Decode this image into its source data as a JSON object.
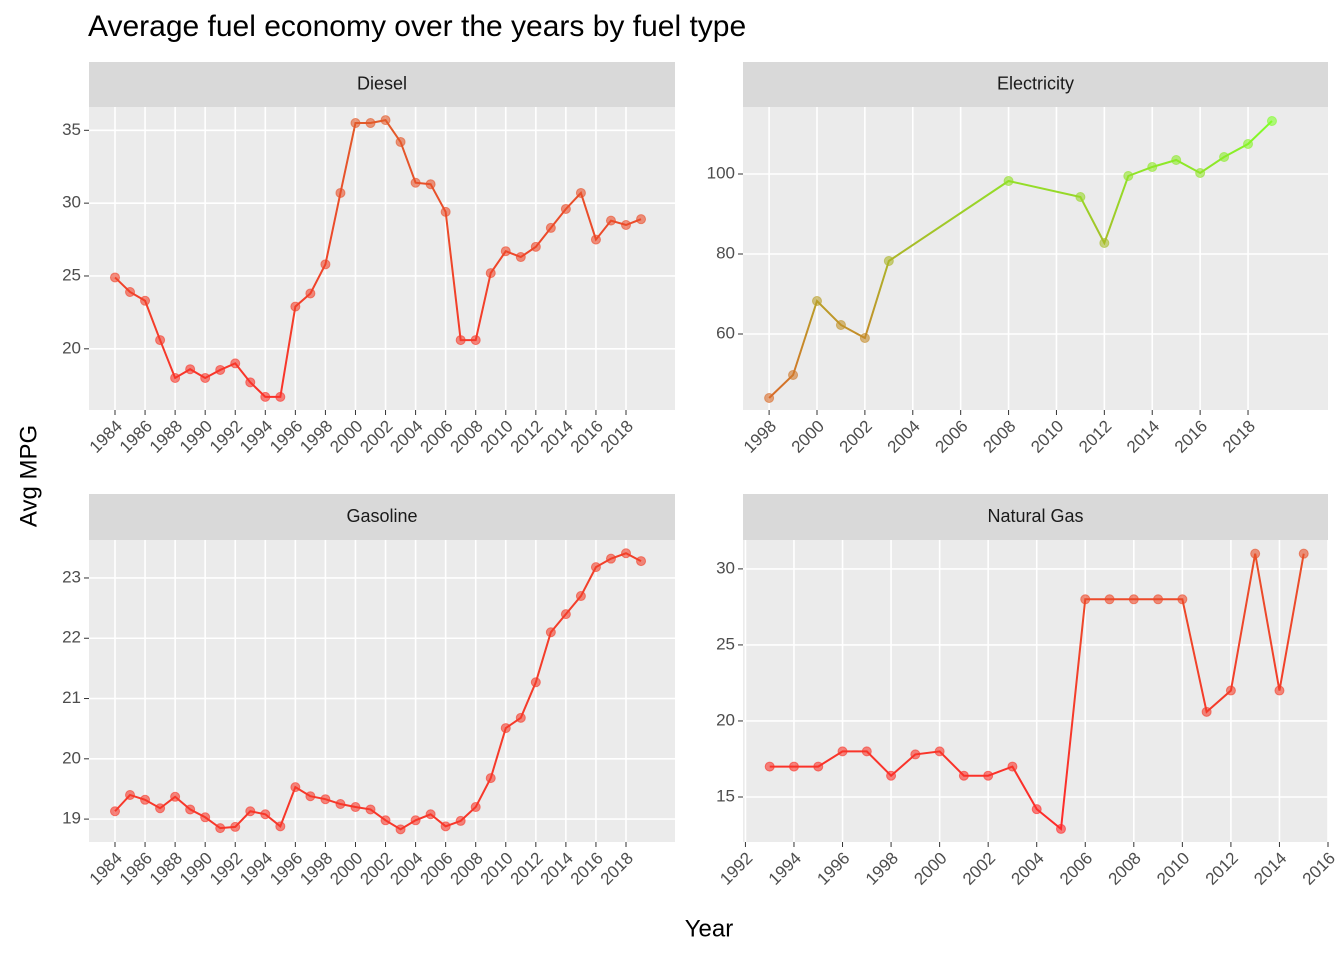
{
  "title": "Average fuel economy over the years by fuel type",
  "xlabel": "Year",
  "ylabel": "Avg MPG",
  "color_scale": {
    "low": "#ff2a2a",
    "high": "#80ff28"
  },
  "chart_data": [
    {
      "type": "line",
      "title": "Diesel",
      "x": [
        1984,
        1985,
        1986,
        1987,
        1988,
        1989,
        1990,
        1991,
        1992,
        1993,
        1994,
        1995,
        1996,
        1997,
        1998,
        1999,
        2000,
        2001,
        2002,
        2003,
        2004,
        2005,
        2006,
        2007,
        2008,
        2009,
        2010,
        2011,
        2012,
        2013,
        2014,
        2015,
        2016,
        2017,
        2018,
        2019
      ],
      "values": [
        24.9,
        23.9,
        23.3,
        20.6,
        18.0,
        18.6,
        18.0,
        18.55,
        19.0,
        17.7,
        16.7,
        16.7,
        22.9,
        23.8,
        25.8,
        30.7,
        35.5,
        35.5,
        35.7,
        34.2,
        31.4,
        31.3,
        29.4,
        20.6,
        20.6,
        25.2,
        26.7,
        26.3,
        27.0,
        28.3,
        29.6,
        30.7,
        27.5,
        28.8,
        28.5,
        28.9
      ],
      "xlim": [
        1982.27,
        2021.26
      ],
      "xticks": [
        1984,
        1986,
        1988,
        1990,
        1992,
        1994,
        1996,
        1998,
        2000,
        2002,
        2004,
        2006,
        2008,
        2010,
        2012,
        2014,
        2016,
        2018
      ],
      "ylim": [
        15.8,
        36.6
      ],
      "yticks": [
        20,
        25,
        30,
        35
      ]
    },
    {
      "type": "line",
      "title": "Electricity",
      "x": [
        1998,
        1999,
        2000,
        2001,
        2002,
        2003,
        2008,
        2011,
        2012,
        2013,
        2014,
        2015,
        2016,
        2017,
        2018,
        2019
      ],
      "values": [
        44,
        49.75,
        68.25,
        62.25,
        59,
        78.25,
        98.25,
        94.25,
        82.75,
        99.5,
        101.75,
        103.5,
        100.25,
        104.25,
        107.5,
        113.25
      ],
      "xlim": [
        1996.91,
        2021.34
      ],
      "xticks": [
        1998,
        2000,
        2002,
        2004,
        2006,
        2008,
        2010,
        2012,
        2014,
        2016,
        2018
      ],
      "ylim": [
        41,
        116.75
      ],
      "yticks": [
        60,
        80,
        100
      ]
    },
    {
      "type": "line",
      "title": "Gasoline",
      "x": [
        1984,
        1985,
        1986,
        1987,
        1988,
        1989,
        1990,
        1991,
        1992,
        1993,
        1994,
        1995,
        1996,
        1997,
        1998,
        1999,
        2000,
        2001,
        2002,
        2003,
        2004,
        2005,
        2006,
        2007,
        2008,
        2009,
        2010,
        2011,
        2012,
        2013,
        2014,
        2015,
        2016,
        2017,
        2018,
        2019
      ],
      "values": [
        19.13,
        19.4,
        19.32,
        19.18,
        19.37,
        19.16,
        19.03,
        18.85,
        18.87,
        19.13,
        19.08,
        18.88,
        19.53,
        19.38,
        19.33,
        19.25,
        19.2,
        19.16,
        18.98,
        18.83,
        18.98,
        19.08,
        18.88,
        18.97,
        19.2,
        19.68,
        20.51,
        20.68,
        21.27,
        22.1,
        22.4,
        22.7,
        23.18,
        23.32,
        23.41,
        23.28
      ],
      "xlim": [
        1982.27,
        2021.26
      ],
      "xticks": [
        1984,
        1986,
        1988,
        1990,
        1992,
        1994,
        1996,
        1998,
        2000,
        2002,
        2004,
        2006,
        2008,
        2010,
        2012,
        2014,
        2016,
        2018
      ],
      "ylim": [
        18.62,
        23.63
      ],
      "yticks": [
        19,
        20,
        21,
        22,
        23
      ]
    },
    {
      "type": "line",
      "title": "Natural Gas",
      "x": [
        1993,
        1994,
        1995,
        1996,
        1997,
        1998,
        1999,
        2000,
        2001,
        2002,
        2003,
        2004,
        2005,
        2006,
        2007,
        2008,
        2009,
        2010,
        2011,
        2012,
        2013,
        2014,
        2015
      ],
      "values": [
        17,
        17,
        17,
        18,
        18,
        16.4,
        17.8,
        18,
        16.4,
        16.4,
        17,
        14.2,
        12.9,
        28,
        28,
        28,
        28,
        28,
        20.6,
        22,
        31,
        22,
        31
      ],
      "xlim": [
        1991.9,
        2016.0
      ],
      "xticks": [
        1992,
        1994,
        1996,
        1998,
        2000,
        2002,
        2004,
        2006,
        2008,
        2010,
        2012,
        2014,
        2016
      ],
      "ylim": [
        12.04,
        31.9
      ],
      "yticks": [
        15,
        20,
        25,
        30
      ]
    }
  ]
}
